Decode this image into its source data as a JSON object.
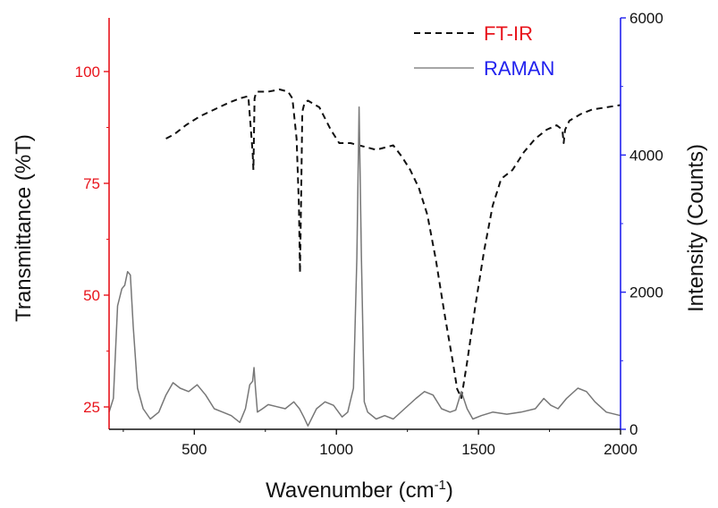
{
  "chart_data": {
    "type": "line",
    "x_axis": {
      "label": "Wavenumber (cm",
      "label_sup": "-1",
      "label_suffix": ")",
      "range": [
        200,
        2000
      ],
      "ticks": [
        500,
        1000,
        1500,
        2000
      ],
      "tick_labels": [
        "500",
        "1000",
        "1500",
        "2000"
      ]
    },
    "y_left": {
      "label": "Transmittance (%T)",
      "range": [
        20,
        112
      ],
      "ticks": [
        25,
        50,
        75,
        100
      ],
      "tick_labels": [
        "25",
        "50",
        "75",
        "100"
      ],
      "color": "#e8141c"
    },
    "y_right": {
      "label": "Intensity (Counts)",
      "range": [
        0,
        6000
      ],
      "ticks": [
        0,
        2000,
        4000,
        6000
      ],
      "tick_labels": [
        "0",
        "2000",
        "4000",
        "6000"
      ],
      "color": "#2222ee"
    },
    "legend": {
      "position": "top-right",
      "entries": [
        {
          "label": "FT-IR",
          "color": "#e8141c",
          "line": "dashed"
        },
        {
          "label": "RAMAN",
          "color": "#2222ee",
          "line": "solid-gray"
        }
      ]
    },
    "series": [
      {
        "name": "FT-IR",
        "axis": "left",
        "style": "dashed",
        "line_color": "#111111",
        "x": [
          400,
          430,
          470,
          520,
          570,
          620,
          660,
          690,
          705,
          708,
          712,
          716,
          720,
          760,
          800,
          830,
          845,
          860,
          868,
          872,
          876,
          880,
          888,
          900,
          940,
          980,
          1010,
          1050,
          1080,
          1110,
          1140,
          1170,
          1200,
          1230,
          1260,
          1290,
          1320,
          1350,
          1380,
          1410,
          1425,
          1440,
          1460,
          1490,
          1520,
          1550,
          1580,
          1620,
          1660,
          1700,
          1740,
          1775,
          1795,
          1800,
          1805,
          1820,
          1860,
          1900,
          1950,
          2000
        ],
        "y": [
          85,
          86,
          88,
          90,
          91.5,
          93,
          94,
          94.5,
          82,
          78,
          94,
          95,
          95.5,
          95.5,
          96,
          95.5,
          94,
          85,
          70,
          55,
          72,
          91,
          93,
          93.5,
          92,
          87,
          84,
          84,
          83.5,
          83,
          82.5,
          83,
          83.5,
          81,
          78,
          74,
          68,
          58,
          46,
          35,
          29,
          27,
          35,
          48,
          60,
          70,
          76,
          78,
          82,
          85,
          87,
          88,
          87,
          84,
          87,
          89,
          90.5,
          91.5,
          92,
          92.5
        ]
      },
      {
        "name": "RAMAN",
        "axis": "right",
        "style": "solid",
        "line_color": "#777777",
        "x": [
          200,
          215,
          230,
          245,
          255,
          265,
          275,
          285,
          300,
          320,
          345,
          375,
          400,
          425,
          450,
          480,
          510,
          540,
          570,
          600,
          630,
          660,
          680,
          695,
          705,
          710,
          715,
          722,
          740,
          760,
          790,
          820,
          850,
          870,
          885,
          900,
          930,
          960,
          990,
          1020,
          1040,
          1060,
          1072,
          1080,
          1088,
          1098,
          1110,
          1140,
          1170,
          1200,
          1240,
          1280,
          1310,
          1340,
          1370,
          1400,
          1420,
          1440,
          1460,
          1480,
          1510,
          1550,
          1600,
          1650,
          1700,
          1730,
          1755,
          1780,
          1810,
          1850,
          1880,
          1910,
          1950,
          2000
        ],
        "y": [
          250,
          450,
          1800,
          2050,
          2100,
          2300,
          2250,
          1500,
          600,
          300,
          150,
          250,
          500,
          680,
          600,
          550,
          650,
          500,
          300,
          250,
          200,
          100,
          300,
          650,
          700,
          900,
          600,
          250,
          300,
          360,
          330,
          300,
          400,
          300,
          180,
          50,
          300,
          400,
          350,
          180,
          250,
          600,
          2500,
          4700,
          2500,
          400,
          250,
          150,
          200,
          150,
          300,
          450,
          550,
          500,
          300,
          250,
          280,
          550,
          300,
          150,
          200,
          250,
          220,
          250,
          300,
          450,
          350,
          300,
          450,
          600,
          550,
          400,
          250,
          200
        ]
      }
    ]
  }
}
